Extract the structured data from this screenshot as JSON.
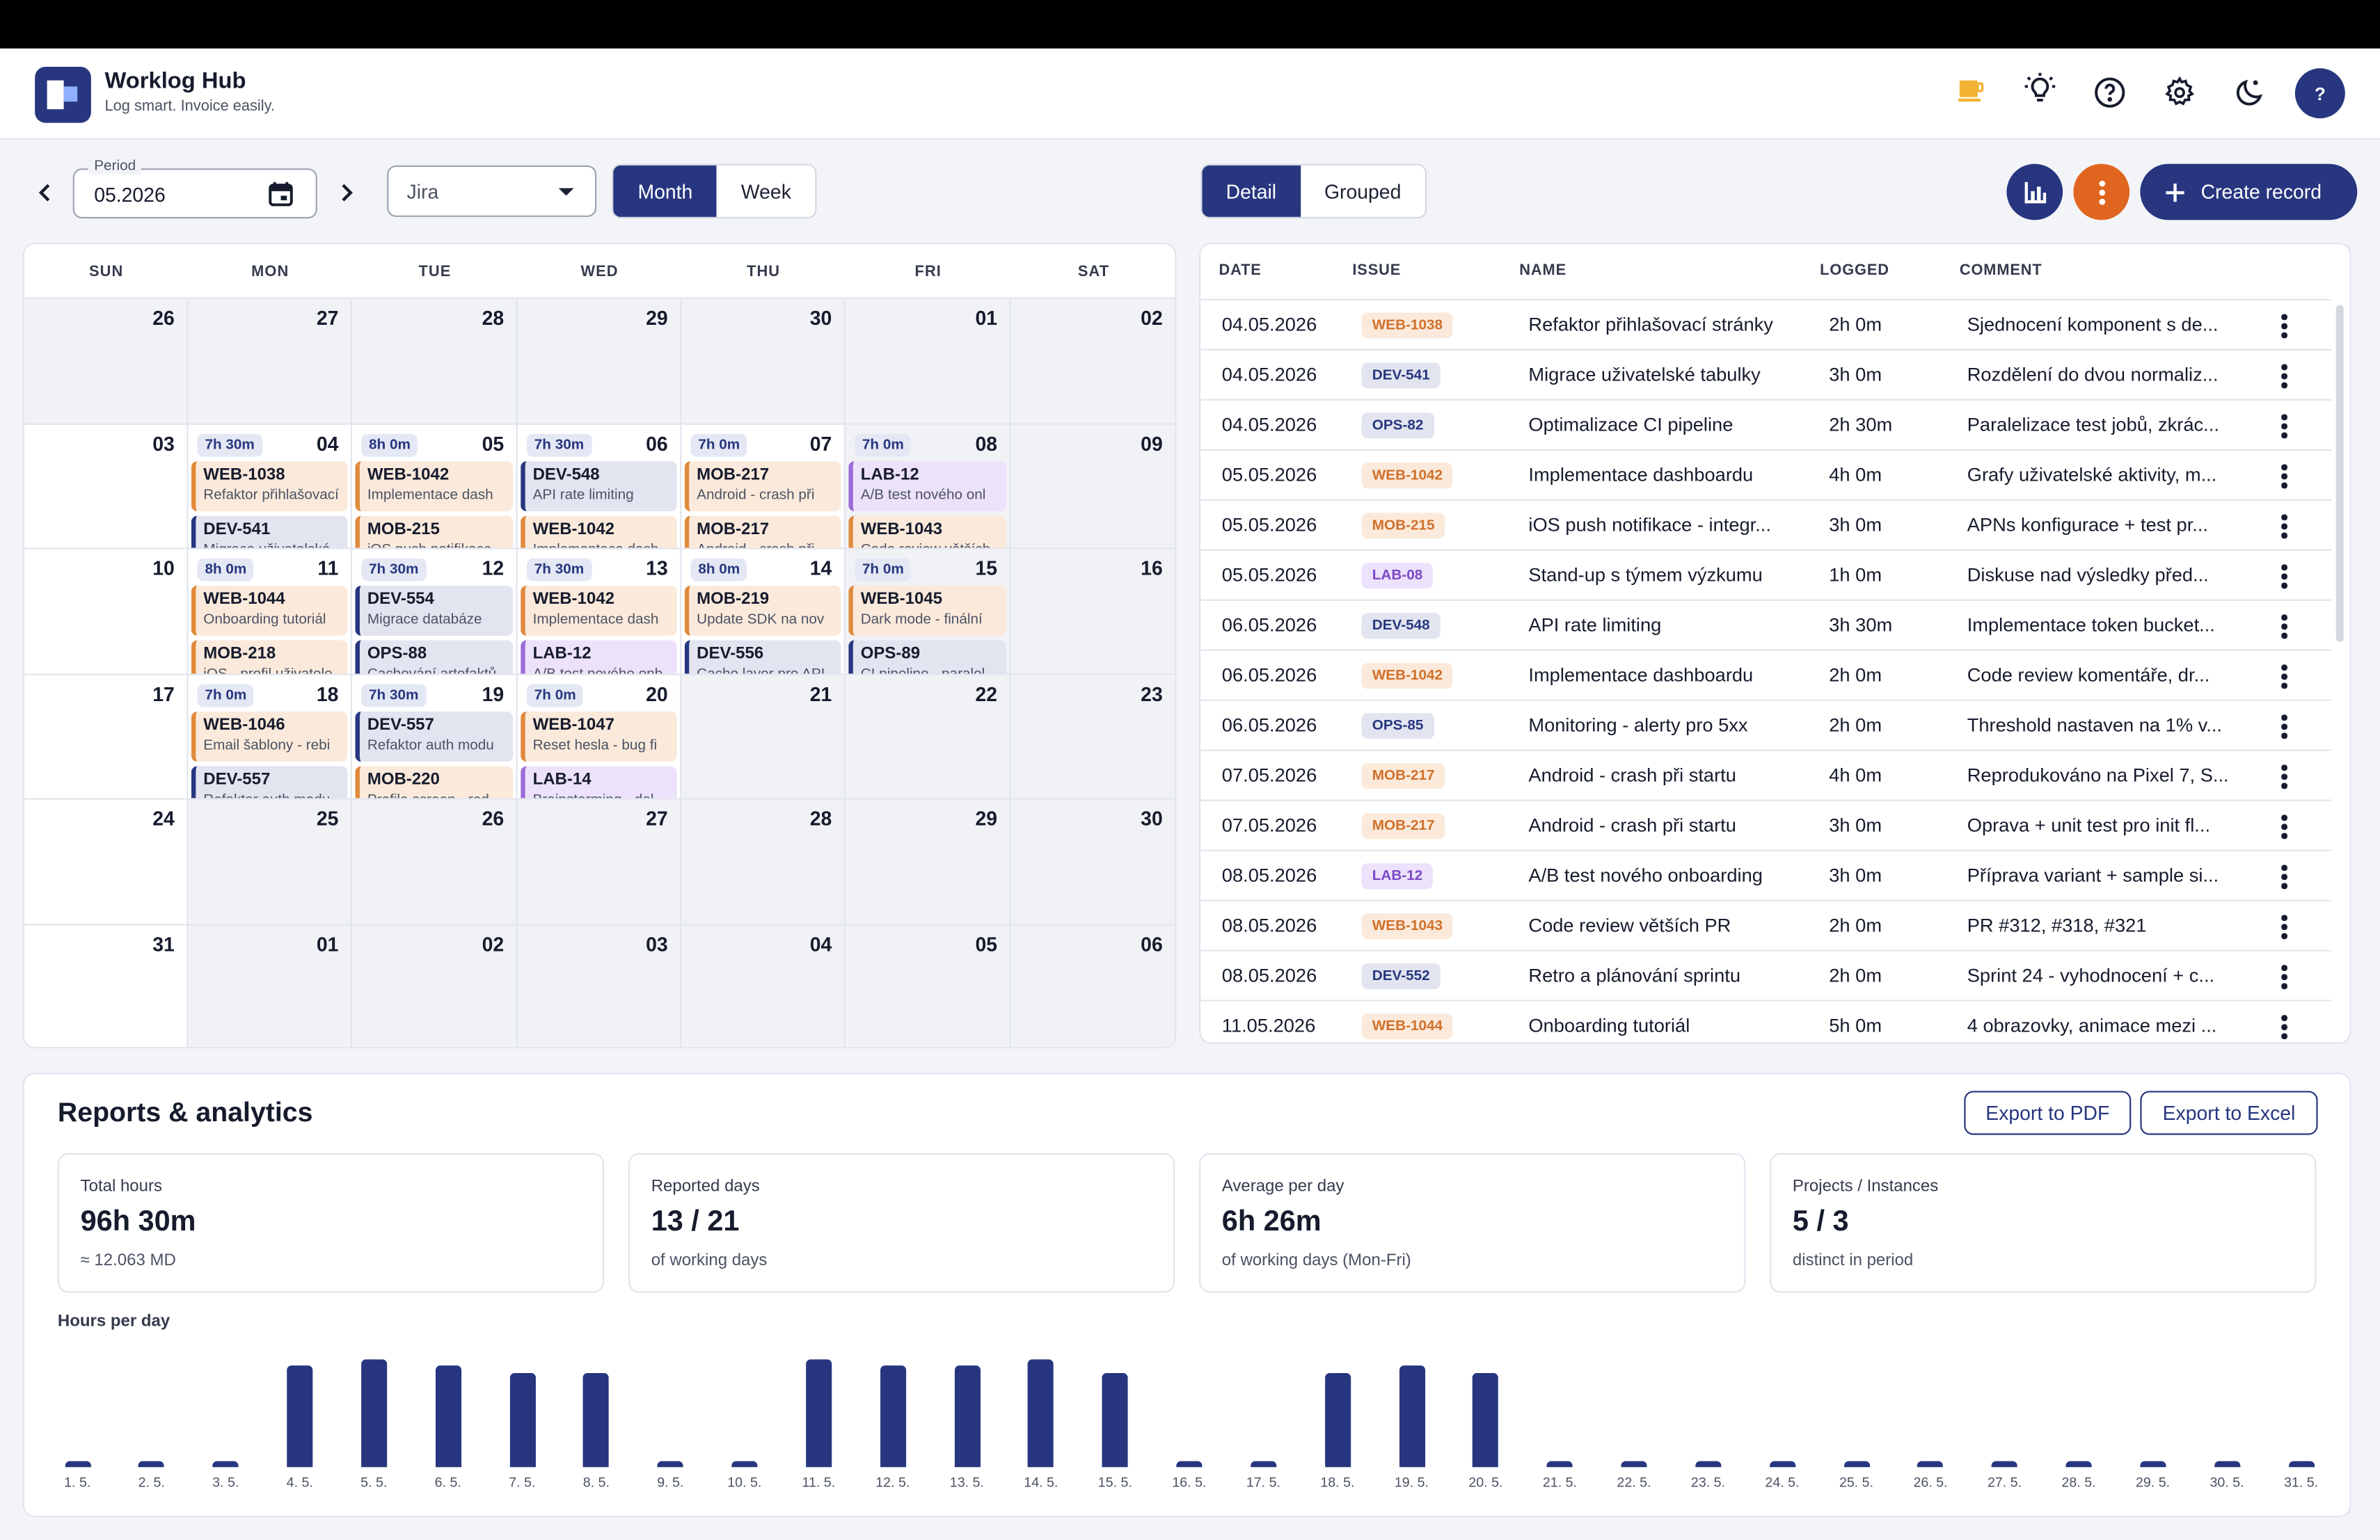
{
  "app": {
    "title": "Worklog Hub",
    "subtitle": "Log smart. Invoice easily.",
    "avatar": "?"
  },
  "header_icons": [
    "coffee-icon",
    "lightbulb-icon",
    "help-icon",
    "gear-icon",
    "moon-icon"
  ],
  "toolbar": {
    "period_label": "Period",
    "period_value": "05.2026",
    "source_select": "Jira",
    "view_month": "Month",
    "view_week": "Week",
    "mode_detail": "Detail",
    "mode_grouped": "Grouped",
    "create_label": "Create record"
  },
  "colors": {
    "primary": "#27367f",
    "orange": "#e0651f",
    "web": "#e08a3c",
    "lab": "#9b6bd8"
  },
  "calendar": {
    "days_of_week": [
      "SUN",
      "MON",
      "TUE",
      "WED",
      "THU",
      "FRI",
      "SAT"
    ],
    "weeks": [
      [
        {
          "d": "26",
          "out": true
        },
        {
          "d": "27",
          "out": true
        },
        {
          "d": "28",
          "out": true
        },
        {
          "d": "29",
          "out": true
        },
        {
          "d": "30",
          "out": true
        },
        {
          "d": "01",
          "shade": true
        },
        {
          "d": "02",
          "shade": true
        }
      ],
      [
        {
          "d": "03"
        },
        {
          "d": "04",
          "h": "7h 30m",
          "ev": [
            {
              "k": "WEB-1038",
              "t": "Refaktor přihlašovací",
              "c": "web"
            },
            {
              "k": "DEV-541",
              "t": "Migrace uživatelské",
              "c": "dev"
            }
          ]
        },
        {
          "d": "05",
          "h": "8h 0m",
          "ev": [
            {
              "k": "WEB-1042",
              "t": "Implementace dash",
              "c": "web"
            },
            {
              "k": "MOB-215",
              "t": "iOS push notifikace",
              "c": "mob"
            }
          ]
        },
        {
          "d": "06",
          "h": "7h 30m",
          "ev": [
            {
              "k": "DEV-548",
              "t": "API rate limiting",
              "c": "dev"
            },
            {
              "k": "WEB-1042",
              "t": "Implementace dash",
              "c": "web"
            }
          ]
        },
        {
          "d": "07",
          "h": "7h 0m",
          "ev": [
            {
              "k": "MOB-217",
              "t": "Android - crash při",
              "c": "mob"
            },
            {
              "k": "MOB-217",
              "t": "Android - crash při",
              "c": "mob"
            }
          ]
        },
        {
          "d": "08",
          "h": "7h 0m",
          "shade": true,
          "ev": [
            {
              "k": "LAB-12",
              "t": "A/B test nového onl",
              "c": "lab"
            },
            {
              "k": "WEB-1043",
              "t": "Code review větších",
              "c": "web"
            }
          ]
        },
        {
          "d": "09",
          "shade": true
        }
      ],
      [
        {
          "d": "10"
        },
        {
          "d": "11",
          "h": "8h 0m",
          "ev": [
            {
              "k": "WEB-1044",
              "t": "Onboarding tutoriál",
              "c": "web"
            },
            {
              "k": "MOB-218",
              "t": "iOS - profil uživatele",
              "c": "mob"
            }
          ]
        },
        {
          "d": "12",
          "h": "7h 30m",
          "ev": [
            {
              "k": "DEV-554",
              "t": "Migrace databáze",
              "c": "dev"
            },
            {
              "k": "OPS-88",
              "t": "Cachování artefaktů",
              "c": "ops"
            }
          ]
        },
        {
          "d": "13",
          "h": "7h 30m",
          "ev": [
            {
              "k": "WEB-1042",
              "t": "Implementace dash",
              "c": "web"
            },
            {
              "k": "LAB-12",
              "t": "A/B test nového onb",
              "c": "lab"
            }
          ]
        },
        {
          "d": "14",
          "h": "8h 0m",
          "ev": [
            {
              "k": "MOB-219",
              "t": "Update SDK na nov",
              "c": "mob"
            },
            {
              "k": "DEV-556",
              "t": "Cache layer pro API",
              "c": "dev"
            }
          ]
        },
        {
          "d": "15",
          "h": "7h 0m",
          "shade": true,
          "ev": [
            {
              "k": "WEB-1045",
              "t": "Dark mode - finální",
              "c": "web"
            },
            {
              "k": "OPS-89",
              "t": "CI pipeline - paralel",
              "c": "ops"
            }
          ]
        },
        {
          "d": "16",
          "shade": true
        }
      ],
      [
        {
          "d": "17"
        },
        {
          "d": "18",
          "h": "7h 0m",
          "ev": [
            {
              "k": "WEB-1046",
              "t": "Email šablony - rebi",
              "c": "web"
            },
            {
              "k": "DEV-557",
              "t": "Refaktor auth modu",
              "c": "dev"
            }
          ]
        },
        {
          "d": "19",
          "h": "7h 30m",
          "ev": [
            {
              "k": "DEV-557",
              "t": "Refaktor auth modu",
              "c": "dev"
            },
            {
              "k": "MOB-220",
              "t": "Profile screen - red",
              "c": "mob"
            }
          ]
        },
        {
          "d": "20",
          "h": "7h 0m",
          "ev": [
            {
              "k": "WEB-1047",
              "t": "Reset hesla - bug fi",
              "c": "web"
            },
            {
              "k": "LAB-14",
              "t": "Brainstorming - dal",
              "c": "lab"
            }
          ]
        },
        {
          "d": "21",
          "shade": true
        },
        {
          "d": "22",
          "shade": true
        },
        {
          "d": "23",
          "shade": true
        }
      ],
      [
        {
          "d": "24"
        },
        {
          "d": "25",
          "shade": true
        },
        {
          "d": "26",
          "shade": true
        },
        {
          "d": "27",
          "shade": true
        },
        {
          "d": "28",
          "shade": true
        },
        {
          "d": "29",
          "shade": true
        },
        {
          "d": "30",
          "shade": true
        }
      ],
      [
        {
          "d": "31"
        },
        {
          "d": "01",
          "shade": true
        },
        {
          "d": "02",
          "shade": true
        },
        {
          "d": "03",
          "shade": true
        },
        {
          "d": "04",
          "shade": true
        },
        {
          "d": "05",
          "shade": true
        },
        {
          "d": "06",
          "shade": true
        }
      ]
    ]
  },
  "table": {
    "headers": [
      "DATE",
      "ISSUE",
      "NAME",
      "LOGGED",
      "COMMENT"
    ],
    "rows": [
      {
        "date": "04.05.2026",
        "issue": "WEB-1038",
        "c": "web",
        "name": "Refaktor přihlašovací stránky",
        "logged": "2h 0m",
        "comment": "Sjednocení komponent s de..."
      },
      {
        "date": "04.05.2026",
        "issue": "DEV-541",
        "c": "dev",
        "name": "Migrace uživatelské tabulky",
        "logged": "3h 0m",
        "comment": "Rozdělení do dvou normaliz..."
      },
      {
        "date": "04.05.2026",
        "issue": "OPS-82",
        "c": "ops",
        "name": "Optimalizace CI pipeline",
        "logged": "2h 30m",
        "comment": "Paralelizace test jobů, zkrác..."
      },
      {
        "date": "05.05.2026",
        "issue": "WEB-1042",
        "c": "web",
        "name": "Implementace dashboardu",
        "logged": "4h 0m",
        "comment": "Grafy uživatelské aktivity, m..."
      },
      {
        "date": "05.05.2026",
        "issue": "MOB-215",
        "c": "mob",
        "name": "iOS push notifikace - integr...",
        "logged": "3h 0m",
        "comment": "APNs konfigurace + test pr..."
      },
      {
        "date": "05.05.2026",
        "issue": "LAB-08",
        "c": "lab",
        "name": "Stand-up s týmem výzkumu",
        "logged": "1h 0m",
        "comment": "Diskuse nad výsledky před..."
      },
      {
        "date": "06.05.2026",
        "issue": "DEV-548",
        "c": "dev",
        "name": "API rate limiting",
        "logged": "3h 30m",
        "comment": "Implementace token bucket..."
      },
      {
        "date": "06.05.2026",
        "issue": "WEB-1042",
        "c": "web",
        "name": "Implementace dashboardu",
        "logged": "2h 0m",
        "comment": "Code review komentáře, dr..."
      },
      {
        "date": "06.05.2026",
        "issue": "OPS-85",
        "c": "ops",
        "name": "Monitoring - alerty pro 5xx",
        "logged": "2h 0m",
        "comment": "Threshold nastaven na 1% v..."
      },
      {
        "date": "07.05.2026",
        "issue": "MOB-217",
        "c": "mob",
        "name": "Android - crash při startu",
        "logged": "4h 0m",
        "comment": "Reprodukováno na Pixel 7, S..."
      },
      {
        "date": "07.05.2026",
        "issue": "MOB-217",
        "c": "mob",
        "name": "Android - crash při startu",
        "logged": "3h 0m",
        "comment": "Oprava + unit test pro init fl..."
      },
      {
        "date": "08.05.2026",
        "issue": "LAB-12",
        "c": "lab",
        "name": "A/B test nového onboarding",
        "logged": "3h 0m",
        "comment": "Příprava variant + sample si..."
      },
      {
        "date": "08.05.2026",
        "issue": "WEB-1043",
        "c": "web",
        "name": "Code review větších PR",
        "logged": "2h 0m",
        "comment": "PR #312, #318, #321"
      },
      {
        "date": "08.05.2026",
        "issue": "DEV-552",
        "c": "dev",
        "name": "Retro a plánování sprintu",
        "logged": "2h 0m",
        "comment": "Sprint 24 - vyhodnocení + c..."
      },
      {
        "date": "11.05.2026",
        "issue": "WEB-1044",
        "c": "web",
        "name": "Onboarding tutoriál",
        "logged": "5h 0m",
        "comment": "4 obrazovky, animace mezi ..."
      }
    ]
  },
  "reports": {
    "title": "Reports & analytics",
    "export_pdf": "Export to PDF",
    "export_excel": "Export to Excel",
    "cards": [
      {
        "label": "Total hours",
        "value": "96h 30m",
        "sub": "≈ 12.063 MD"
      },
      {
        "label": "Reported days",
        "value": "13 / 21",
        "sub": "of working days"
      },
      {
        "label": "Average per day",
        "value": "6h 26m",
        "sub": "of working days (Mon-Fri)"
      },
      {
        "label": "Projects / Instances",
        "value": "5 / 3",
        "sub": "distinct in period"
      }
    ],
    "chart_title": "Hours per day"
  },
  "chart_data": {
    "type": "bar",
    "title": "Hours per day",
    "categories": [
      "1. 5.",
      "2. 5.",
      "3. 5.",
      "4. 5.",
      "5. 5.",
      "6. 5.",
      "7. 5.",
      "8. 5.",
      "9. 5.",
      "10. 5.",
      "11. 5.",
      "12. 5.",
      "13. 5.",
      "14. 5.",
      "15. 5.",
      "16. 5.",
      "17. 5.",
      "18. 5.",
      "19. 5.",
      "20. 5.",
      "21. 5.",
      "22. 5.",
      "23. 5.",
      "24. 5.",
      "25. 5.",
      "26. 5.",
      "27. 5.",
      "28. 5.",
      "29. 5.",
      "30. 5.",
      "31. 5."
    ],
    "values": [
      0,
      0,
      0,
      7.5,
      8,
      7.5,
      7,
      7,
      0,
      0,
      8,
      7.5,
      7.5,
      8,
      7,
      0,
      0,
      7,
      7.5,
      7,
      0,
      0,
      0,
      0,
      0,
      0,
      0,
      0,
      0,
      0,
      0
    ],
    "ylim": [
      0,
      8
    ]
  }
}
